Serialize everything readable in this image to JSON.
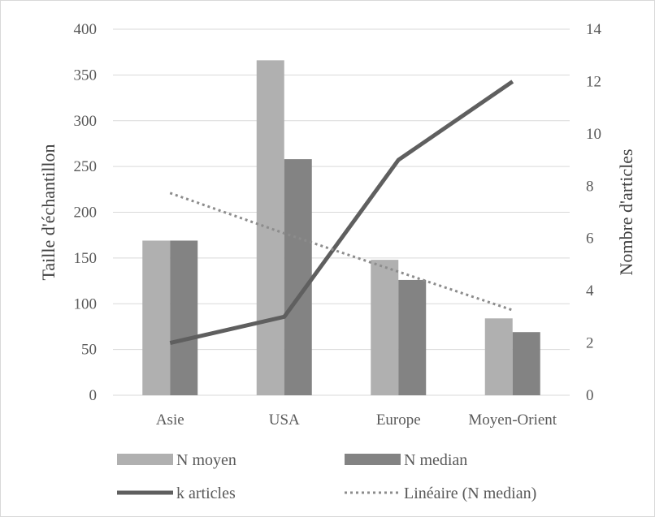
{
  "chart_data": {
    "type": "bar",
    "categories": [
      "Asie",
      "USA",
      "Europe",
      "Moyen-Orient"
    ],
    "series": [
      {
        "name": "N moyen",
        "kind": "bar",
        "axis": "left",
        "color": "#b0b0b0",
        "values": [
          169,
          366,
          148,
          84
        ]
      },
      {
        "name": "N median",
        "kind": "bar",
        "axis": "left",
        "color": "#838383",
        "values": [
          169,
          258,
          126,
          69
        ]
      },
      {
        "name": "k articles",
        "kind": "line",
        "axis": "right",
        "color": "#5f5f5f",
        "values": [
          2,
          3,
          9,
          12
        ]
      },
      {
        "name": "Linéaire (N median)",
        "kind": "trendline",
        "axis": "left",
        "color": "#8c8c8c",
        "values": [
          221,
          177,
          135,
          93
        ]
      }
    ],
    "ylabel": "Taille d'échantillon",
    "y2label": "Nombre d'articles",
    "ylim": [
      0,
      400
    ],
    "y2lim": [
      0,
      14
    ],
    "yticks": [
      "0",
      "50",
      "100",
      "150",
      "200",
      "250",
      "300",
      "350",
      "400"
    ],
    "y2ticks": [
      "0",
      "2",
      "4",
      "6",
      "8",
      "10",
      "12",
      "14"
    ],
    "grid": true,
    "legend": "bottom"
  }
}
